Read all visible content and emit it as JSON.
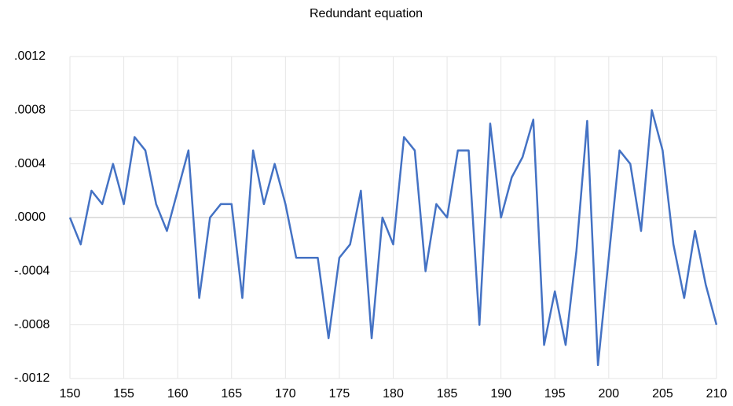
{
  "chart_data": {
    "type": "line",
    "title": "Redundant equation",
    "x": [
      150,
      151,
      152,
      153,
      154,
      155,
      156,
      157,
      158,
      159,
      160,
      161,
      162,
      163,
      164,
      165,
      166,
      167,
      168,
      169,
      170,
      171,
      172,
      173,
      174,
      175,
      176,
      177,
      178,
      179,
      180,
      181,
      182,
      183,
      184,
      185,
      186,
      187,
      188,
      189,
      190,
      191,
      192,
      193,
      194,
      195,
      196,
      197,
      198,
      199,
      200,
      201,
      202,
      203,
      204,
      205,
      206,
      207,
      208,
      209,
      210
    ],
    "series": [
      {
        "color": "#4472c4",
        "values": [
          0,
          -0.0002,
          0.0002,
          0.0001,
          0.0004,
          0.0001,
          0.0006,
          0.0005,
          0.0001,
          -0.0001,
          0.0002,
          0.0005,
          -0.0006,
          0,
          0.0001,
          0.0001,
          -0.0006,
          0.0005,
          0.0001,
          0.0004,
          0.0001,
          -0.0003,
          -0.0003,
          -0.0003,
          -0.0009,
          -0.0003,
          -0.0002,
          0.0002,
          -0.0009,
          0,
          -0.0002,
          0.0006,
          0.0005,
          -0.0004,
          0.0001,
          0,
          0.0005,
          0.0005,
          -0.0008,
          0.0007,
          0,
          0.0003,
          0.00045,
          0.00073,
          -0.00095,
          -0.00055,
          -0.00095,
          -0.00025,
          0.00072,
          -0.0011,
          -0.0003,
          0.0005,
          0.0004,
          -0.0001,
          0.0008,
          0.0005,
          -0.0002,
          -0.0006,
          -0.0001,
          -0.0005,
          -0.0008
        ]
      }
    ],
    "xlim": [
      150,
      210
    ],
    "xticks": [
      150,
      155,
      160,
      165,
      170,
      175,
      180,
      185,
      190,
      195,
      200,
      205,
      210
    ],
    "ylim": [
      -0.0012,
      0.0012
    ],
    "yticks": [
      {
        "value": -0.0012,
        "label": "-.0012"
      },
      {
        "value": -0.0008,
        "label": "-.0008"
      },
      {
        "value": -0.0004,
        "label": "-.0004"
      },
      {
        "value": 0,
        "label": ".0000"
      },
      {
        "value": 0.0004,
        "label": ".0004"
      },
      {
        "value": 0.0008,
        "label": ".0008"
      },
      {
        "value": 0.0012,
        "label": ".0012"
      }
    ],
    "grid": true
  }
}
